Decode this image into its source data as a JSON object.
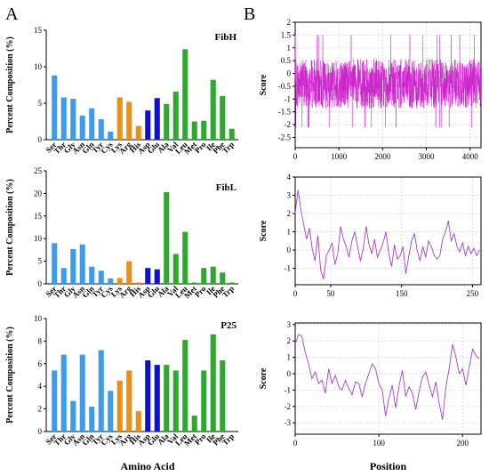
{
  "panels": {
    "a": "A",
    "b": "B"
  },
  "colors": {
    "light_blue": "#3d9be9",
    "orange": "#e8901c",
    "dark_blue": "#1010c8",
    "green": "#2ea82e",
    "line_dense": "#cc22cc",
    "line_thin": "#a040c8"
  },
  "chart_data": [
    {
      "type": "bar",
      "title": "FibH",
      "ylabel": "Percent Composition (%)",
      "xlabel": "",
      "ylim": [
        0,
        15
      ],
      "yticks": [
        0,
        5,
        10,
        15
      ],
      "categories": [
        "Ser",
        "Thr",
        "Gly",
        "Asn",
        "Gln",
        "Tyr",
        "Cys",
        "Lys",
        "Arg",
        "His",
        "Asp",
        "Glu",
        "Ala",
        "Val",
        "Leu",
        "Met",
        "Pro",
        "Ile",
        "Phe",
        "Trp"
      ],
      "values": [
        8.8,
        5.8,
        5.6,
        3.3,
        4.3,
        2.8,
        1.1,
        5.8,
        5.2,
        1.9,
        4.0,
        5.7,
        4.9,
        6.6,
        12.4,
        2.5,
        2.6,
        8.2,
        6.0,
        1.5
      ]
    },
    {
      "type": "bar",
      "title": "FibL",
      "ylabel": "Percent Composition (%)",
      "xlabel": "",
      "ylim": [
        0,
        25
      ],
      "yticks": [
        0,
        5,
        10,
        15,
        20,
        25
      ],
      "categories": [
        "Ser",
        "Thr",
        "Gly",
        "Asn",
        "Gln",
        "Tyr",
        "Cys",
        "Lys",
        "Arg",
        "His",
        "Asp",
        "Glu",
        "Ala",
        "Val",
        "Leu",
        "Met",
        "Pro",
        "Ile",
        "Phe",
        "Trp"
      ],
      "values": [
        9.0,
        3.5,
        7.7,
        8.7,
        3.8,
        2.9,
        1.2,
        1.3,
        5.0,
        0.3,
        3.5,
        3.2,
        20.3,
        6.6,
        11.5,
        0.3,
        3.5,
        3.8,
        2.5,
        0.3
      ]
    },
    {
      "type": "bar",
      "title": "P25",
      "ylabel": "Percent Composition (%)",
      "xlabel": "Amino Acid",
      "ylim": [
        0,
        10
      ],
      "yticks": [
        0,
        2,
        4,
        6,
        8,
        10
      ],
      "categories": [
        "Ser",
        "Thr",
        "Gly",
        "Asn",
        "Gln",
        "Tyr",
        "Cys",
        "Lys",
        "Arg",
        "His",
        "Asp",
        "Glu",
        "Ala",
        "Val",
        "Leu",
        "Met",
        "Pro",
        "Ile",
        "Phe",
        "Trp"
      ],
      "values": [
        5.4,
        6.8,
        2.7,
        6.8,
        2.2,
        7.2,
        3.6,
        4.5,
        5.4,
        1.8,
        6.3,
        5.9,
        5.9,
        5.4,
        8.1,
        1.4,
        5.4,
        8.6,
        6.3,
        0.0
      ]
    },
    {
      "type": "line",
      "title": "",
      "ylabel": "Score",
      "xlabel": "",
      "xlim": [
        0,
        4250
      ],
      "ylim": [
        -2.9,
        2.0
      ],
      "xticks": [
        0,
        1000,
        2000,
        3000,
        4000
      ],
      "yticks": [
        -2.5,
        -2,
        -1.5,
        -1,
        -0.5,
        0,
        0.5,
        1,
        1.5,
        2
      ],
      "ytick_labels": [
        "-2.5",
        "-2",
        "-1.5",
        "-1",
        "-0.5",
        "0",
        "0.5",
        "1",
        "1.5",
        "2"
      ],
      "grid": true,
      "series": [
        {
          "baseline": -0.4,
          "noise": 0.6,
          "points": 4250
        }
      ]
    },
    {
      "type": "line",
      "title": "",
      "ylabel": "Score",
      "xlabel": "",
      "xlim": [
        0,
        262
      ],
      "ylim": [
        -1.9,
        4.0
      ],
      "xticks": [
        0,
        50,
        150,
        250
      ],
      "yticks": [
        -1,
        0,
        1,
        2,
        3,
        4
      ],
      "grid": true,
      "series": [
        {
          "x": [
            0,
            4,
            8,
            12,
            16,
            20,
            24,
            28,
            32,
            36,
            40,
            44,
            48,
            52,
            56,
            60,
            64,
            68,
            72,
            76,
            80,
            84,
            88,
            92,
            96,
            100,
            104,
            108,
            112,
            116,
            120,
            124,
            128,
            132,
            136,
            140,
            144,
            148,
            152,
            156,
            160,
            164,
            168,
            172,
            176,
            180,
            184,
            188,
            192,
            196,
            200,
            204,
            208,
            212,
            216,
            220,
            224,
            228,
            232,
            236,
            240,
            244,
            248,
            252,
            256,
            260
          ],
          "y": [
            2.0,
            3.3,
            2.2,
            1.4,
            0.6,
            1.2,
            0.1,
            -0.6,
            0.8,
            -1.1,
            -1.6,
            -0.3,
            0.0,
            0.4,
            -0.8,
            -0.2,
            1.3,
            0.6,
            0.2,
            -0.4,
            0.5,
            1.0,
            0.2,
            -0.6,
            0.1,
            1.3,
            0.3,
            -0.2,
            0.6,
            -0.4,
            0.0,
            0.4,
            1.0,
            -0.2,
            -0.9,
            0.3,
            -0.5,
            -0.3,
            0.2,
            -1.3,
            -0.4,
            0.5,
            0.9,
            0.0,
            -0.6,
            0.2,
            -0.4,
            0.5,
            0.2,
            -0.3,
            -0.5,
            -0.3,
            0.6,
            1.0,
            1.6,
            0.5,
            0.9,
            0.2,
            -0.1,
            0.4,
            -0.3,
            0.2,
            -0.2,
            0.1,
            -0.3,
            0.0
          ]
        }
      ]
    },
    {
      "type": "line",
      "title": "",
      "ylabel": "Score",
      "xlabel": "Position",
      "xlim": [
        0,
        222
      ],
      "ylim": [
        -3.7,
        3.1
      ],
      "xticks": [
        0,
        100,
        200
      ],
      "yticks": [
        -3,
        -2,
        -1,
        0,
        1,
        2,
        3
      ],
      "grid": true,
      "series": [
        {
          "x": [
            0,
            4,
            8,
            12,
            16,
            20,
            24,
            28,
            32,
            36,
            40,
            44,
            48,
            52,
            56,
            60,
            64,
            68,
            72,
            76,
            80,
            84,
            88,
            92,
            96,
            100,
            104,
            108,
            112,
            116,
            120,
            124,
            128,
            132,
            136,
            140,
            144,
            148,
            152,
            156,
            160,
            164,
            168,
            172,
            176,
            180,
            184,
            188,
            192,
            196,
            200,
            204,
            208,
            212,
            216,
            220
          ],
          "y": [
            1.8,
            2.4,
            2.3,
            1.3,
            0.6,
            -0.3,
            0.1,
            -0.6,
            -0.4,
            -1.2,
            0.3,
            -0.6,
            -0.1,
            -0.8,
            -1.0,
            -0.4,
            -0.9,
            -1.3,
            -0.5,
            -0.6,
            -1.4,
            -0.6,
            0.0,
            0.6,
            0.3,
            -0.6,
            -1.0,
            -2.6,
            -1.5,
            -0.7,
            -2.1,
            -0.8,
            0.2,
            -1.4,
            -0.8,
            -1.2,
            -2.2,
            -1.1,
            -0.2,
            0.1,
            -0.7,
            -1.4,
            -0.5,
            -1.8,
            -2.8,
            -0.8,
            0.3,
            1.8,
            1.0,
            0.0,
            0.3,
            -0.7,
            0.4,
            1.5,
            1.1,
            0.9
          ]
        }
      ]
    }
  ]
}
